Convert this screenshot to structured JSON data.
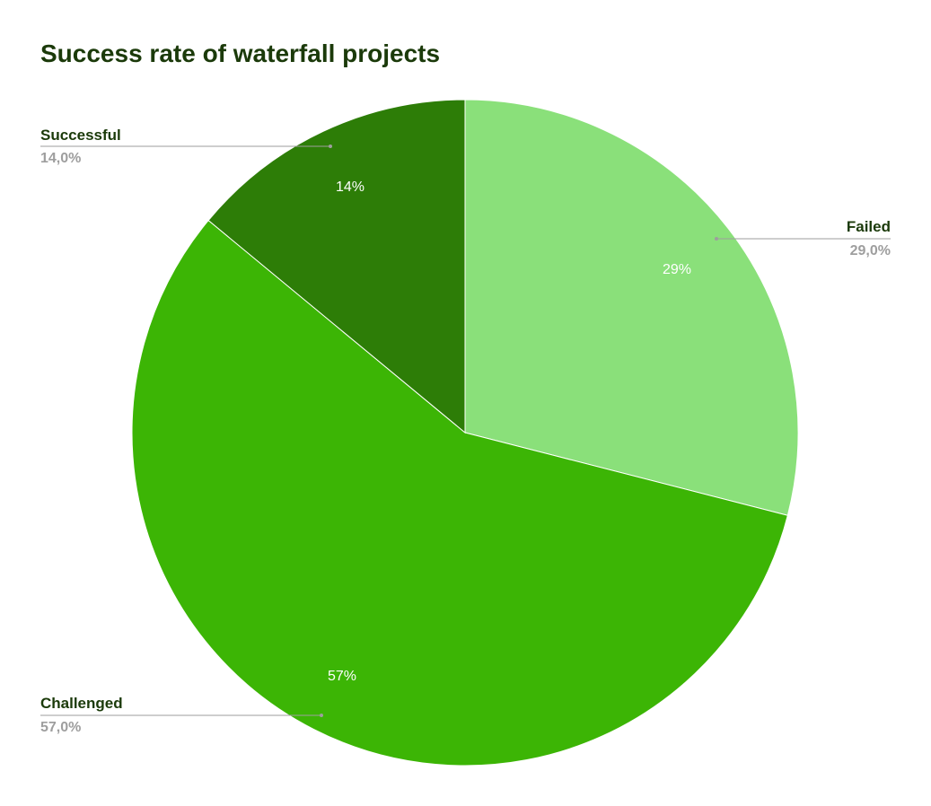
{
  "chart_data": {
    "type": "pie",
    "title": "Success rate of waterfall projects",
    "slices": [
      {
        "label": "Failed",
        "value": 29,
        "percent_label": "29%",
        "value_label": "29,0%",
        "color": "#8ae07a"
      },
      {
        "label": "Challenged",
        "value": 57,
        "percent_label": "57%",
        "value_label": "57,0%",
        "color": "#3cb505"
      },
      {
        "label": "Successful",
        "value": 14,
        "percent_label": "14%",
        "value_label": "14,0%",
        "color": "#2d7d07"
      }
    ],
    "start_angle_deg": 0,
    "direction": "clockwise",
    "legend": "outside-labels"
  },
  "colors": {
    "title": "#1b3a0a",
    "leader_line": "#9e9e9e",
    "value_text": "#9e9e9e"
  }
}
